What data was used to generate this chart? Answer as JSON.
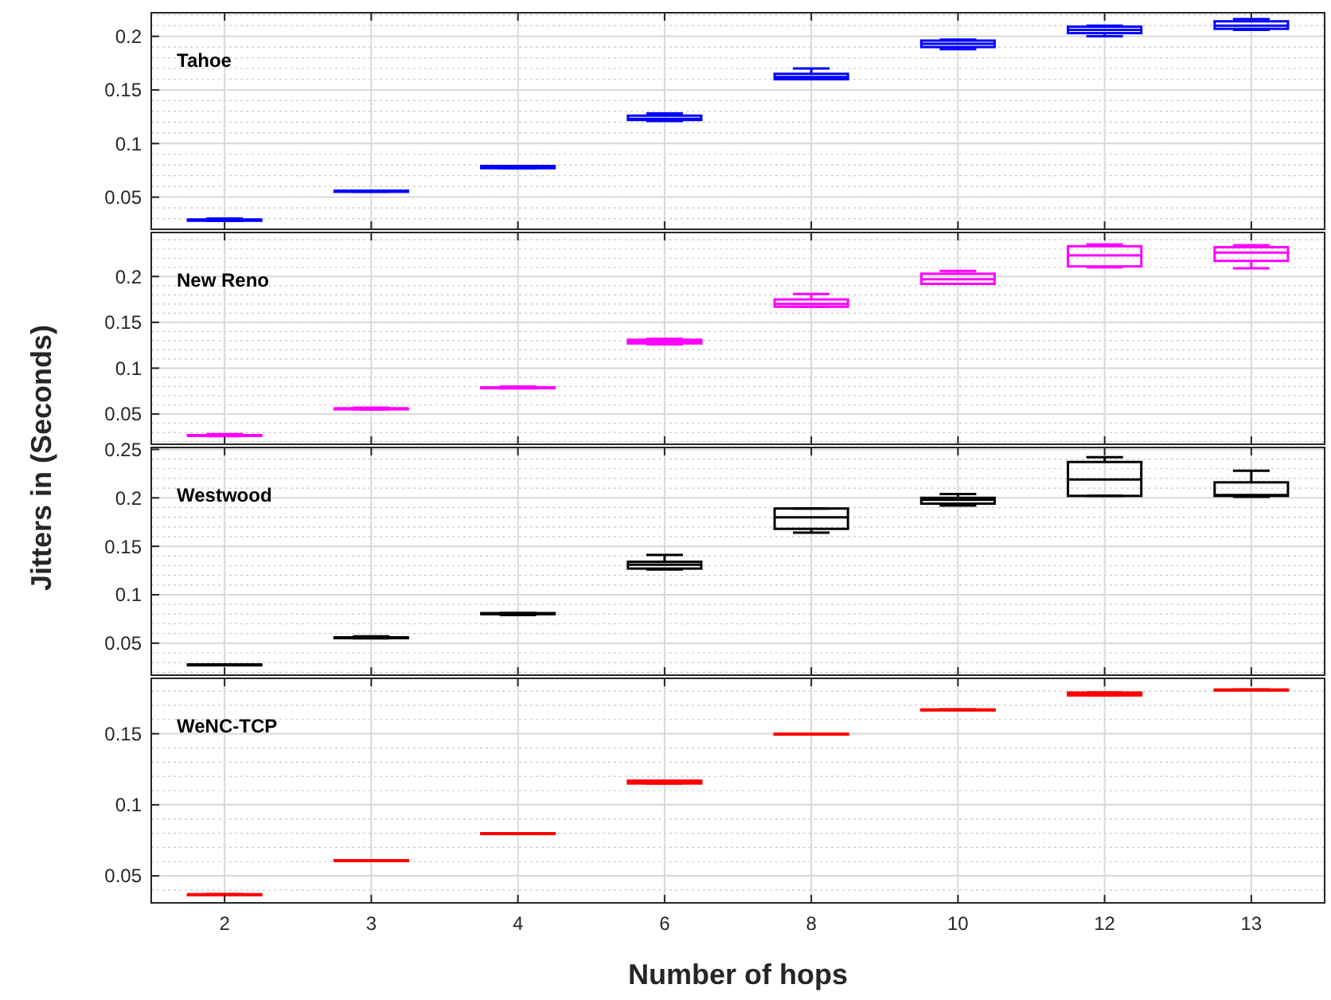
{
  "chart_data": [
    {
      "type": "box",
      "ylabel": "Jitters  in (Seconds)",
      "categories": [
        "2",
        "3",
        "4",
        "6",
        "8",
        "10",
        "12",
        "13"
      ],
      "ylim": [
        0.02,
        0.222
      ],
      "yticks": [
        0.05,
        0.1,
        0.15,
        0.2
      ],
      "grid": true,
      "tick_labels": "y",
      "series": [
        {
          "name": "Tahoe",
          "color": "#0000ff",
          "boxes": [
            {
              "low": 0.028,
              "q1": 0.028,
              "median": 0.029,
              "q3": 0.029,
              "high": 0.03
            },
            {
              "low": 0.055,
              "q1": 0.055,
              "median": 0.0555,
              "q3": 0.056,
              "high": 0.056
            },
            {
              "low": 0.077,
              "q1": 0.077,
              "median": 0.078,
              "q3": 0.079,
              "high": 0.079
            },
            {
              "low": 0.121,
              "q1": 0.122,
              "median": 0.123,
              "q3": 0.126,
              "high": 0.128
            },
            {
              "low": 0.16,
              "q1": 0.16,
              "median": 0.162,
              "q3": 0.165,
              "high": 0.17
            },
            {
              "low": 0.188,
              "q1": 0.19,
              "median": 0.193,
              "q3": 0.196,
              "high": 0.197
            },
            {
              "low": 0.2,
              "q1": 0.203,
              "median": 0.206,
              "q3": 0.209,
              "high": 0.21
            },
            {
              "low": 0.206,
              "q1": 0.207,
              "median": 0.21,
              "q3": 0.214,
              "high": 0.216
            }
          ]
        }
      ]
    },
    {
      "type": "box",
      "categories": [
        "2",
        "3",
        "4",
        "6",
        "8",
        "10",
        "12",
        "13"
      ],
      "ylim": [
        0.017,
        0.248
      ],
      "yticks": [
        0.05,
        0.1,
        0.15,
        0.2
      ],
      "grid": true,
      "tick_labels": "y",
      "series": [
        {
          "name": "New Reno",
          "color": "#ff00ff",
          "boxes": [
            {
              "low": 0.026,
              "q1": 0.027,
              "median": 0.027,
              "q3": 0.027,
              "high": 0.028
            },
            {
              "low": 0.055,
              "q1": 0.056,
              "median": 0.056,
              "q3": 0.056,
              "high": 0.057
            },
            {
              "low": 0.078,
              "q1": 0.079,
              "median": 0.079,
              "q3": 0.079,
              "high": 0.08
            },
            {
              "low": 0.126,
              "q1": 0.127,
              "median": 0.129,
              "q3": 0.131,
              "high": 0.132
            },
            {
              "low": 0.167,
              "q1": 0.167,
              "median": 0.17,
              "q3": 0.175,
              "high": 0.181
            },
            {
              "low": 0.192,
              "q1": 0.192,
              "median": 0.197,
              "q3": 0.203,
              "high": 0.206
            },
            {
              "low": 0.21,
              "q1": 0.211,
              "median": 0.223,
              "q3": 0.233,
              "high": 0.235
            },
            {
              "low": 0.209,
              "q1": 0.217,
              "median": 0.226,
              "q3": 0.232,
              "high": 0.234
            }
          ]
        }
      ]
    },
    {
      "type": "box",
      "categories": [
        "2",
        "3",
        "4",
        "6",
        "8",
        "10",
        "12",
        "13"
      ],
      "ylim": [
        0.017,
        0.252
      ],
      "yticks": [
        0.05,
        0.1,
        0.15,
        0.2,
        0.25
      ],
      "grid": true,
      "tick_labels": "y",
      "series": [
        {
          "name": "Westwood",
          "color": "#000000",
          "boxes": [
            {
              "low": 0.028,
              "q1": 0.028,
              "median": 0.028,
              "q3": 0.028,
              "high": 0.028
            },
            {
              "low": 0.055,
              "q1": 0.056,
              "median": 0.056,
              "q3": 0.056,
              "high": 0.057
            },
            {
              "low": 0.079,
              "q1": 0.08,
              "median": 0.08,
              "q3": 0.081,
              "high": 0.081
            },
            {
              "low": 0.126,
              "q1": 0.127,
              "median": 0.131,
              "q3": 0.134,
              "high": 0.141
            },
            {
              "low": 0.164,
              "q1": 0.168,
              "median": 0.18,
              "q3": 0.189,
              "high": 0.189
            },
            {
              "low": 0.192,
              "q1": 0.194,
              "median": 0.198,
              "q3": 0.2,
              "high": 0.204
            },
            {
              "low": 0.202,
              "q1": 0.202,
              "median": 0.219,
              "q3": 0.237,
              "high": 0.242
            },
            {
              "low": 0.201,
              "q1": 0.202,
              "median": 0.203,
              "q3": 0.216,
              "high": 0.228
            }
          ]
        }
      ]
    },
    {
      "type": "box",
      "xlabel": "Number of hops",
      "categories": [
        "2",
        "3",
        "4",
        "6",
        "8",
        "10",
        "12",
        "13"
      ],
      "ylim": [
        0.031,
        0.189
      ],
      "yticks": [
        0.05,
        0.1,
        0.15
      ],
      "grid": true,
      "series": [
        {
          "name": "WeNC-TCP",
          "color": "#ff0000",
          "boxes": [
            {
              "low": 0.037,
              "q1": 0.037,
              "median": 0.037,
              "q3": 0.037,
              "high": 0.037
            },
            {
              "low": 0.061,
              "q1": 0.061,
              "median": 0.061,
              "q3": 0.061,
              "high": 0.061
            },
            {
              "low": 0.08,
              "q1": 0.08,
              "median": 0.08,
              "q3": 0.08,
              "high": 0.08
            },
            {
              "low": 0.115,
              "q1": 0.115,
              "median": 0.116,
              "q3": 0.117,
              "high": 0.117
            },
            {
              "low": 0.15,
              "q1": 0.15,
              "median": 0.15,
              "q3": 0.15,
              "high": 0.15
            },
            {
              "low": 0.167,
              "q1": 0.167,
              "median": 0.167,
              "q3": 0.167,
              "high": 0.167
            },
            {
              "low": 0.177,
              "q1": 0.177,
              "median": 0.178,
              "q3": 0.179,
              "high": 0.179
            },
            {
              "low": 0.181,
              "q1": 0.181,
              "median": 0.181,
              "q3": 0.181,
              "high": 0.181
            }
          ]
        }
      ]
    }
  ]
}
